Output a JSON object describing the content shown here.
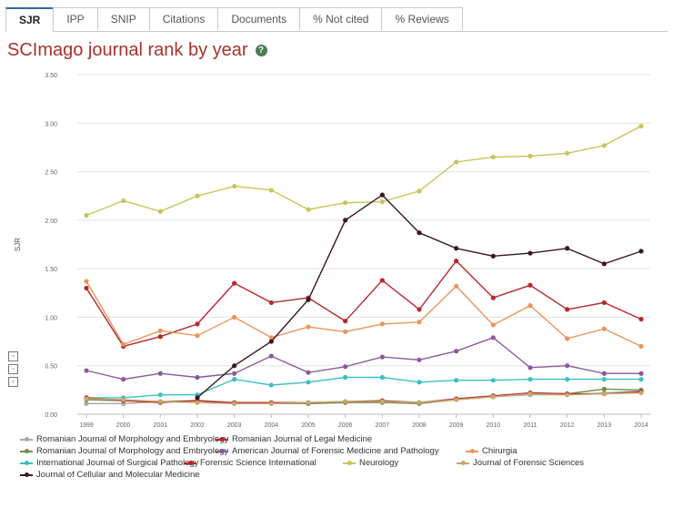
{
  "tabs": [
    {
      "label": "SJR",
      "active": true
    },
    {
      "label": "IPP",
      "active": false
    },
    {
      "label": "SNIP",
      "active": false
    },
    {
      "label": "Citations",
      "active": false
    },
    {
      "label": "Documents",
      "active": false
    },
    {
      "label": "% Not cited",
      "active": false
    },
    {
      "label": "% Reviews",
      "active": false
    }
  ],
  "page_title": "SCImago journal rank by year",
  "help_glyph": "?",
  "chart_data": {
    "type": "line",
    "title": "SCImago journal rank by year",
    "xlabel": "",
    "ylabel": "SJR",
    "x": [
      "1999",
      "2000",
      "2001",
      "2002",
      "2003",
      "2004",
      "2005",
      "2006",
      "2007",
      "2008",
      "2009",
      "2010",
      "2011",
      "2012",
      "2013",
      "2014"
    ],
    "ylim": [
      0,
      3.5
    ],
    "yticks": [
      "0.00",
      "0.50",
      "1.00",
      "1.50",
      "2.00",
      "2.50",
      "3.00",
      "3.50"
    ],
    "grid": true,
    "legend_position": "bottom",
    "series": [
      {
        "name": "Romanian Journal of Morphology and Embryology",
        "color": "#a7a7a7",
        "values": [
          0.11,
          0.11,
          0.13,
          0.12,
          0.11,
          0.11,
          0.11,
          0.12,
          0.13,
          0.12,
          0.15,
          0.18,
          0.2,
          0.2,
          0.22,
          0.24
        ]
      },
      {
        "name": "Romanian Journal of Legal Medicine",
        "color": "#b5282f",
        "values": [
          1.3,
          0.7,
          0.8,
          0.93,
          1.35,
          1.15,
          1.2,
          0.96,
          1.38,
          1.08,
          1.58,
          1.2,
          1.33,
          1.08,
          1.15,
          0.98
        ]
      },
      {
        "name": "Romanian Journal of Morphology and Embryology",
        "color": "#6f8f52",
        "values": [
          0.15,
          0.14,
          0.13,
          0.14,
          0.11,
          0.11,
          0.11,
          0.12,
          0.12,
          0.11,
          0.15,
          0.18,
          0.22,
          0.21,
          0.26,
          0.25
        ]
      },
      {
        "name": "American Journal of Forensic Medicine and Pathology",
        "color": "#8a5a9c",
        "values": [
          0.45,
          0.36,
          0.42,
          0.38,
          0.42,
          0.6,
          0.43,
          0.49,
          0.59,
          0.56,
          0.65,
          0.79,
          0.48,
          0.5,
          0.42,
          0.42
        ]
      },
      {
        "name": "Chirurgia",
        "color": "#e9965a",
        "values": [
          1.37,
          0.72,
          0.86,
          0.81,
          1.0,
          0.79,
          0.9,
          0.85,
          0.93,
          0.95,
          1.32,
          0.92,
          1.12,
          0.78,
          0.88,
          0.7
        ]
      },
      {
        "name": "International Journal of Surgical Pathology",
        "color": "#3ec0c0",
        "values": [
          0.17,
          0.17,
          0.2,
          0.2,
          0.36,
          0.3,
          0.33,
          0.38,
          0.38,
          0.33,
          0.35,
          0.35,
          0.36,
          0.36,
          0.36,
          0.36
        ]
      },
      {
        "name": "Forensic Science International",
        "color": "#b5282f",
        "values": [
          0.17,
          0.14,
          0.12,
          0.14,
          0.12,
          0.12,
          0.12,
          0.13,
          0.14,
          0.12,
          0.16,
          0.19,
          0.22,
          0.21,
          0.21,
          0.23
        ]
      },
      {
        "name": "Neurology",
        "color": "#c9c45a",
        "values": [
          2.05,
          2.2,
          2.09,
          2.25,
          2.35,
          2.31,
          2.11,
          2.18,
          2.19,
          2.3,
          2.6,
          2.65,
          2.66,
          2.69,
          2.77,
          2.97
        ]
      },
      {
        "name": "Journal of Forensic Sciences",
        "color": "#caa86a",
        "values": [
          0.16,
          0.15,
          0.13,
          0.12,
          0.11,
          0.11,
          0.12,
          0.13,
          0.13,
          0.12,
          0.15,
          0.18,
          0.21,
          0.2,
          0.21,
          0.22
        ]
      },
      {
        "name": "Journal of Cellular and Molecular Medicine",
        "color": "#3a1526",
        "values": [
          null,
          null,
          null,
          0.17,
          0.5,
          0.75,
          1.18,
          2.0,
          2.26,
          1.87,
          1.71,
          1.63,
          1.66,
          1.71,
          1.55,
          1.68
        ]
      }
    ]
  }
}
